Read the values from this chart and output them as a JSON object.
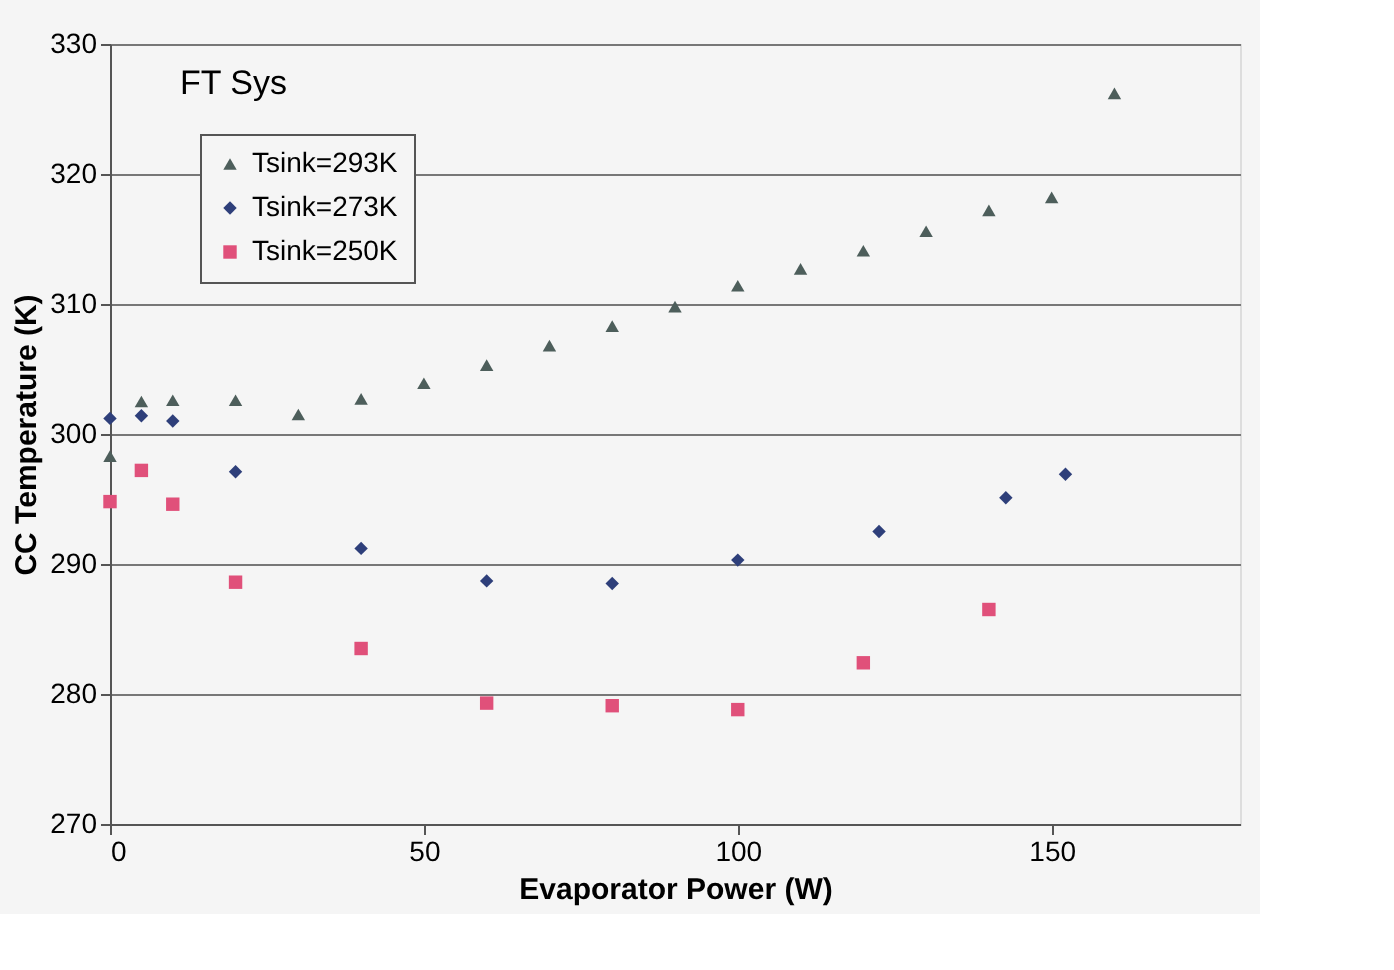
{
  "chart_data": {
    "type": "scatter",
    "xlabel": "Evaporator Power (W)",
    "ylabel": "CC Temperature (K)",
    "xlim": [
      0,
      180
    ],
    "xticks": [
      0,
      50,
      100,
      150
    ],
    "ylim": [
      270,
      330
    ],
    "yticks": [
      270,
      280,
      290,
      300,
      310,
      320,
      330
    ],
    "grid": "y",
    "legend": "top left",
    "annotations": [
      "FT Sys"
    ],
    "series": [
      {
        "name": "Tsink=293K",
        "color": "#4d5e5b",
        "marker": "triangle",
        "x": [
          0,
          5,
          10,
          20,
          30,
          40,
          50,
          60,
          70,
          80,
          90,
          100,
          110,
          120,
          130,
          140,
          150,
          160
        ],
        "values": [
          298.3,
          302.5,
          302.6,
          302.6,
          301.5,
          302.7,
          303.9,
          305.3,
          306.8,
          308.3,
          309.8,
          311.4,
          312.7,
          314.1,
          315.6,
          317.2,
          318.2,
          326.2
        ]
      },
      {
        "name": "Tsink=273K",
        "color": "#2e3f7a",
        "marker": "diamond",
        "x": [
          0,
          5,
          10,
          20,
          40,
          60,
          80,
          100,
          122.5,
          142.7,
          152.2
        ],
        "values": [
          301.2,
          301.4,
          301.0,
          297.1,
          291.2,
          288.7,
          288.5,
          290.3,
          292.5,
          295.1,
          296.9
        ]
      },
      {
        "name": "Tsink=250K",
        "color": "#e0507a",
        "marker": "square",
        "x": [
          0,
          5,
          10,
          20,
          40,
          60,
          80,
          100,
          120,
          140
        ],
        "values": [
          294.8,
          297.2,
          294.6,
          288.6,
          283.5,
          279.3,
          279.1,
          278.8,
          282.4,
          286.5
        ]
      }
    ]
  }
}
